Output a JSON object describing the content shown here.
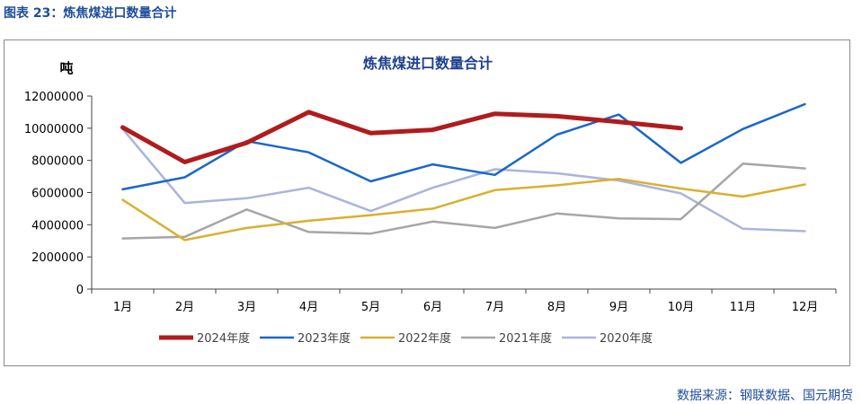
{
  "caption": "图表 23：炼焦煤进口数量合计",
  "source": "数据来源：钢联数据、国元期货",
  "chart_data": {
    "type": "line",
    "title": "炼焦煤进口数量合计",
    "ylabel": "吨",
    "xlabel": "",
    "categories": [
      "1月",
      "2月",
      "3月",
      "4月",
      "5月",
      "6月",
      "7月",
      "8月",
      "9月",
      "10月",
      "11月",
      "12月"
    ],
    "ylim": [
      0,
      12000000
    ],
    "yticks": [
      "0",
      "2000000",
      "4000000",
      "6000000",
      "8000000",
      "10000000",
      "12000000"
    ],
    "grid": false,
    "legend_position": "bottom",
    "series": [
      {
        "name": "2024年度",
        "color": "#b01c1c",
        "width": 5,
        "values": [
          10050000,
          7900000,
          9100000,
          11000000,
          9700000,
          9900000,
          10900000,
          10750000,
          10400000,
          10000000,
          null,
          null
        ]
      },
      {
        "name": "2023年度",
        "color": "#1a66cc",
        "width": 2.5,
        "values": [
          6200000,
          6950000,
          9200000,
          8500000,
          6700000,
          7750000,
          7100000,
          9600000,
          10850000,
          7850000,
          9950000,
          11500000
        ]
      },
      {
        "name": "2022年度",
        "color": "#d9b02e",
        "width": 2.5,
        "values": [
          5550000,
          3050000,
          3800000,
          4250000,
          4600000,
          5000000,
          6150000,
          6450000,
          6850000,
          6250000,
          5750000,
          6500000
        ]
      },
      {
        "name": "2021年度",
        "color": "#a6a6a6",
        "width": 2.5,
        "values": [
          3150000,
          3250000,
          4950000,
          3550000,
          3450000,
          4200000,
          3800000,
          4700000,
          4400000,
          4350000,
          7800000,
          7500000
        ]
      },
      {
        "name": "2020年度",
        "color": "#aab4dc",
        "width": 2.5,
        "values": [
          9950000,
          5350000,
          5650000,
          6300000,
          4850000,
          6300000,
          7450000,
          7200000,
          6750000,
          5950000,
          3750000,
          3600000
        ]
      }
    ]
  }
}
